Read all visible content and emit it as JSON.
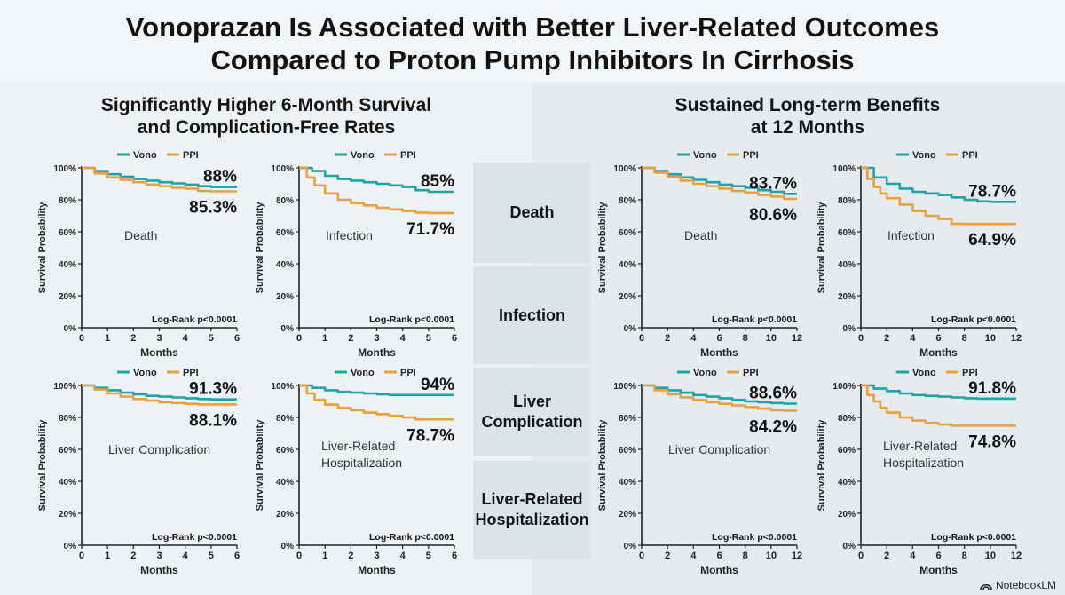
{
  "title_line1": "Vonoprazan Is Associated with Better Liver-Related Outcomes",
  "title_line2": "Compared to Proton Pump Inhibitors In Cirrhosis",
  "left_heading_line1": "Significantly Higher 6-Month Survival",
  "left_heading_line2": "and Complication-Free Rates",
  "right_heading_line1": "Sustained Long-term Benefits",
  "right_heading_line2": "at 12 Months",
  "middle_labels": [
    "Death",
    "Infection",
    "Liver Complication",
    "Liver-Related Hospitalization"
  ],
  "footer": "NotebookLM",
  "colors": {
    "vono": "#1fa3a6",
    "ppi": "#e8a040",
    "axis": "#222222"
  },
  "chart_data": [
    {
      "type": "line",
      "title": "Death",
      "xlabel": "Months",
      "ylabel": "Survival Probability",
      "xlim": [
        0,
        6
      ],
      "ylim": [
        0,
        100
      ],
      "xticks": [
        "0",
        "1",
        "2",
        "3",
        "4",
        "5",
        "6"
      ],
      "yticks": [
        "0%",
        "20%",
        "40%",
        "60%",
        "80%",
        "100%"
      ],
      "legend": [
        "Vono",
        "PPI"
      ],
      "annotation": "Log-Rank p<0.0001",
      "vono_label": "88%",
      "ppi_label": "85.3%",
      "series": [
        {
          "name": "Vono",
          "x": [
            0,
            0.5,
            1,
            1.5,
            2,
            2.5,
            3,
            3.5,
            4,
            4.5,
            5,
            6
          ],
          "y": [
            100,
            98,
            96,
            94.5,
            93,
            92,
            91,
            90.3,
            89.5,
            88.5,
            88,
            88
          ]
        },
        {
          "name": "PPI",
          "x": [
            0,
            0.5,
            1,
            1.5,
            2,
            2.5,
            3,
            3.5,
            4,
            4.5,
            5,
            6
          ],
          "y": [
            100,
            96.5,
            94,
            92.5,
            91,
            89.5,
            88.5,
            87.5,
            87,
            85.5,
            85.3,
            85.3
          ]
        }
      ]
    },
    {
      "type": "line",
      "title": "Infection",
      "xlabel": "Months",
      "ylabel": "Survival Probability",
      "xlim": [
        0,
        6
      ],
      "ylim": [
        0,
        100
      ],
      "xticks": [
        "0",
        "1",
        "2",
        "3",
        "4",
        "5",
        "6"
      ],
      "yticks": [
        "0%",
        "20%",
        "40%",
        "60%",
        "80%",
        "100%"
      ],
      "legend": [
        "Vono",
        "PPI"
      ],
      "annotation": "Log-Rank p<0.0001",
      "vono_label": "85%",
      "ppi_label": "71.7%",
      "series": [
        {
          "name": "Vono",
          "x": [
            0,
            0.5,
            1,
            1.5,
            2,
            2.5,
            3,
            3.5,
            4,
            4.5,
            5,
            6
          ],
          "y": [
            100,
            98,
            95,
            93,
            92,
            91,
            90,
            89,
            88,
            86,
            85,
            85
          ]
        },
        {
          "name": "PPI",
          "x": [
            0,
            0.3,
            0.6,
            1,
            1.5,
            2,
            2.5,
            3,
            3.5,
            4,
            4.5,
            5,
            6
          ],
          "y": [
            100,
            94,
            89,
            84,
            80,
            78,
            76.5,
            75,
            74,
            73,
            72,
            71.7,
            71.7
          ]
        }
      ]
    },
    {
      "type": "line",
      "title": "Liver Complication",
      "xlabel": "Months",
      "ylabel": "Survival Probability",
      "xlim": [
        0,
        6
      ],
      "ylim": [
        0,
        100
      ],
      "xticks": [
        "0",
        "1",
        "2",
        "3",
        "4",
        "5",
        "6"
      ],
      "yticks": [
        "0%",
        "20%",
        "40%",
        "60%",
        "80%",
        "100%"
      ],
      "legend": [
        "Vono",
        "PPI"
      ],
      "annotation": "Log-Rank p<0.0001",
      "vono_label": "91.3%",
      "ppi_label": "88.1%",
      "series": [
        {
          "name": "Vono",
          "x": [
            0,
            0.5,
            1,
            1.5,
            2,
            2.5,
            3,
            3.5,
            4,
            4.5,
            5,
            6
          ],
          "y": [
            100,
            98.5,
            97,
            95.5,
            94.5,
            93.5,
            93,
            92.5,
            92,
            91.5,
            91.3,
            91.3
          ]
        },
        {
          "name": "PPI",
          "x": [
            0,
            0.5,
            1,
            1.5,
            2,
            2.5,
            3,
            3.5,
            4,
            4.5,
            5,
            6
          ],
          "y": [
            100,
            97.5,
            95,
            93,
            91.5,
            90.5,
            89.5,
            89,
            88.5,
            88.1,
            88.1,
            88.1
          ]
        }
      ]
    },
    {
      "type": "line",
      "title": "Liver-Related Hospitalization",
      "xlabel": "Months",
      "ylabel": "Survival Probability",
      "xlim": [
        0,
        6
      ],
      "ylim": [
        0,
        100
      ],
      "xticks": [
        "0",
        "1",
        "2",
        "3",
        "4",
        "5",
        "6"
      ],
      "yticks": [
        "0%",
        "20%",
        "40%",
        "60%",
        "80%",
        "100%"
      ],
      "legend": [
        "Vono",
        "PPI"
      ],
      "annotation": "Log-Rank p<0.0001",
      "vono_label": "94%",
      "ppi_label": "78.7%",
      "series": [
        {
          "name": "Vono",
          "x": [
            0,
            0.5,
            1,
            1.5,
            2,
            2.5,
            3,
            3.5,
            4,
            5,
            6
          ],
          "y": [
            100,
            98.5,
            97,
            96,
            95.5,
            95,
            94.5,
            94,
            94,
            94,
            94
          ]
        },
        {
          "name": "PPI",
          "x": [
            0,
            0.3,
            0.6,
            1,
            1.5,
            2,
            2.5,
            3,
            3.5,
            4,
            4.5,
            5,
            6
          ],
          "y": [
            100,
            95,
            91,
            88,
            86,
            84.5,
            83,
            82,
            81,
            80,
            78.7,
            78.7,
            78.7
          ]
        }
      ]
    },
    {
      "type": "line",
      "title": "Death",
      "xlabel": "Months",
      "ylabel": "Survival Probability",
      "xlim": [
        0,
        12
      ],
      "ylim": [
        0,
        100
      ],
      "xticks": [
        "0",
        "2",
        "4",
        "6",
        "8",
        "10",
        "12"
      ],
      "yticks": [
        "0%",
        "20%",
        "40%",
        "60%",
        "80%",
        "100%"
      ],
      "legend": [
        "Vono",
        "PPI"
      ],
      "annotation": "Log-Rank p<0.0001",
      "vono_label": "83.7%",
      "ppi_label": "80.6%",
      "series": [
        {
          "name": "Vono",
          "x": [
            0,
            1,
            2,
            3,
            4,
            5,
            6,
            7,
            8,
            9,
            10,
            11,
            12
          ],
          "y": [
            100,
            98,
            96,
            94,
            92.5,
            91,
            89.5,
            88.5,
            87.5,
            86,
            85,
            83.7,
            83.7
          ]
        },
        {
          "name": "PPI",
          "x": [
            0,
            1,
            2,
            3,
            4,
            5,
            6,
            7,
            8,
            9,
            10,
            11,
            12
          ],
          "y": [
            100,
            97,
            94.5,
            92,
            90,
            88.5,
            87,
            85.5,
            84.5,
            83,
            82,
            80.6,
            80.6
          ]
        }
      ]
    },
    {
      "type": "line",
      "title": "Infection",
      "xlabel": "Months",
      "ylabel": "Survival Probability",
      "xlim": [
        0,
        12
      ],
      "ylim": [
        0,
        100
      ],
      "xticks": [
        "0",
        "2",
        "4",
        "6",
        "8",
        "10",
        "12"
      ],
      "yticks": [
        "0%",
        "20%",
        "40%",
        "60%",
        "80%",
        "100%"
      ],
      "legend": [
        "Vono",
        "PPI"
      ],
      "annotation": "Log-Rank p<0.0001",
      "vono_label": "78.7%",
      "ppi_label": "64.9%",
      "series": [
        {
          "name": "Vono",
          "x": [
            0,
            1,
            2,
            3,
            4,
            5,
            6,
            7,
            8,
            9,
            10,
            11,
            12
          ],
          "y": [
            100,
            94,
            90,
            87,
            85,
            84,
            83,
            81.5,
            80,
            79,
            78.7,
            78.7,
            78.7
          ]
        },
        {
          "name": "PPI",
          "x": [
            0,
            0.5,
            1,
            1.5,
            2,
            3,
            4,
            5,
            6,
            7,
            8,
            10,
            12
          ],
          "y": [
            100,
            93,
            88,
            84,
            81,
            77,
            73,
            70,
            68,
            65,
            64.9,
            64.9,
            64.9
          ]
        }
      ]
    },
    {
      "type": "line",
      "title": "Liver Complication",
      "xlabel": "Months",
      "ylabel": "Survival Probability",
      "xlim": [
        0,
        12
      ],
      "ylim": [
        0,
        100
      ],
      "xticks": [
        "0",
        "2",
        "4",
        "6",
        "8",
        "10",
        "12"
      ],
      "yticks": [
        "0%",
        "20%",
        "40%",
        "60%",
        "80%",
        "100%"
      ],
      "legend": [
        "Vono",
        "PPI"
      ],
      "annotation": "Log-Rank p<0.0001",
      "vono_label": "88.6%",
      "ppi_label": "84.2%",
      "series": [
        {
          "name": "Vono",
          "x": [
            0,
            1,
            2,
            3,
            4,
            5,
            6,
            7,
            8,
            9,
            10,
            11,
            12
          ],
          "y": [
            100,
            98.5,
            97,
            95.5,
            94,
            93,
            92,
            91,
            90,
            89.5,
            89,
            88.6,
            88.6
          ]
        },
        {
          "name": "PPI",
          "x": [
            0,
            1,
            2,
            3,
            4,
            5,
            6,
            7,
            8,
            9,
            10,
            11,
            12
          ],
          "y": [
            100,
            97,
            94.5,
            92.5,
            91,
            89.5,
            88.5,
            87.5,
            86.5,
            85.5,
            84.5,
            84.2,
            84.2
          ]
        }
      ]
    },
    {
      "type": "line",
      "title": "Liver-Related Hospitalization",
      "xlabel": "Months",
      "ylabel": "Survival Probability",
      "xlim": [
        0,
        12
      ],
      "ylim": [
        0,
        100
      ],
      "xticks": [
        "0",
        "2",
        "4",
        "6",
        "8",
        "10",
        "12"
      ],
      "yticks": [
        "0%",
        "20%",
        "40%",
        "60%",
        "80%",
        "100%"
      ],
      "legend": [
        "Vono",
        "PPI"
      ],
      "annotation": "Log-Rank p<0.0001",
      "vono_label": "91.8%",
      "ppi_label": "74.8%",
      "series": [
        {
          "name": "Vono",
          "x": [
            0,
            1,
            2,
            3,
            4,
            5,
            6,
            7,
            8,
            9,
            10,
            11,
            12
          ],
          "y": [
            100,
            98,
            96.5,
            95,
            94,
            93.5,
            93,
            92.5,
            92,
            91.8,
            91.8,
            91.8,
            91.8
          ]
        },
        {
          "name": "PPI",
          "x": [
            0,
            0.5,
            1,
            1.5,
            2,
            3,
            4,
            5,
            6,
            7,
            8,
            10,
            12
          ],
          "y": [
            100,
            94,
            90,
            86,
            83,
            80,
            78,
            76.5,
            75.5,
            74.8,
            74.8,
            74.8,
            74.8
          ]
        }
      ]
    }
  ]
}
